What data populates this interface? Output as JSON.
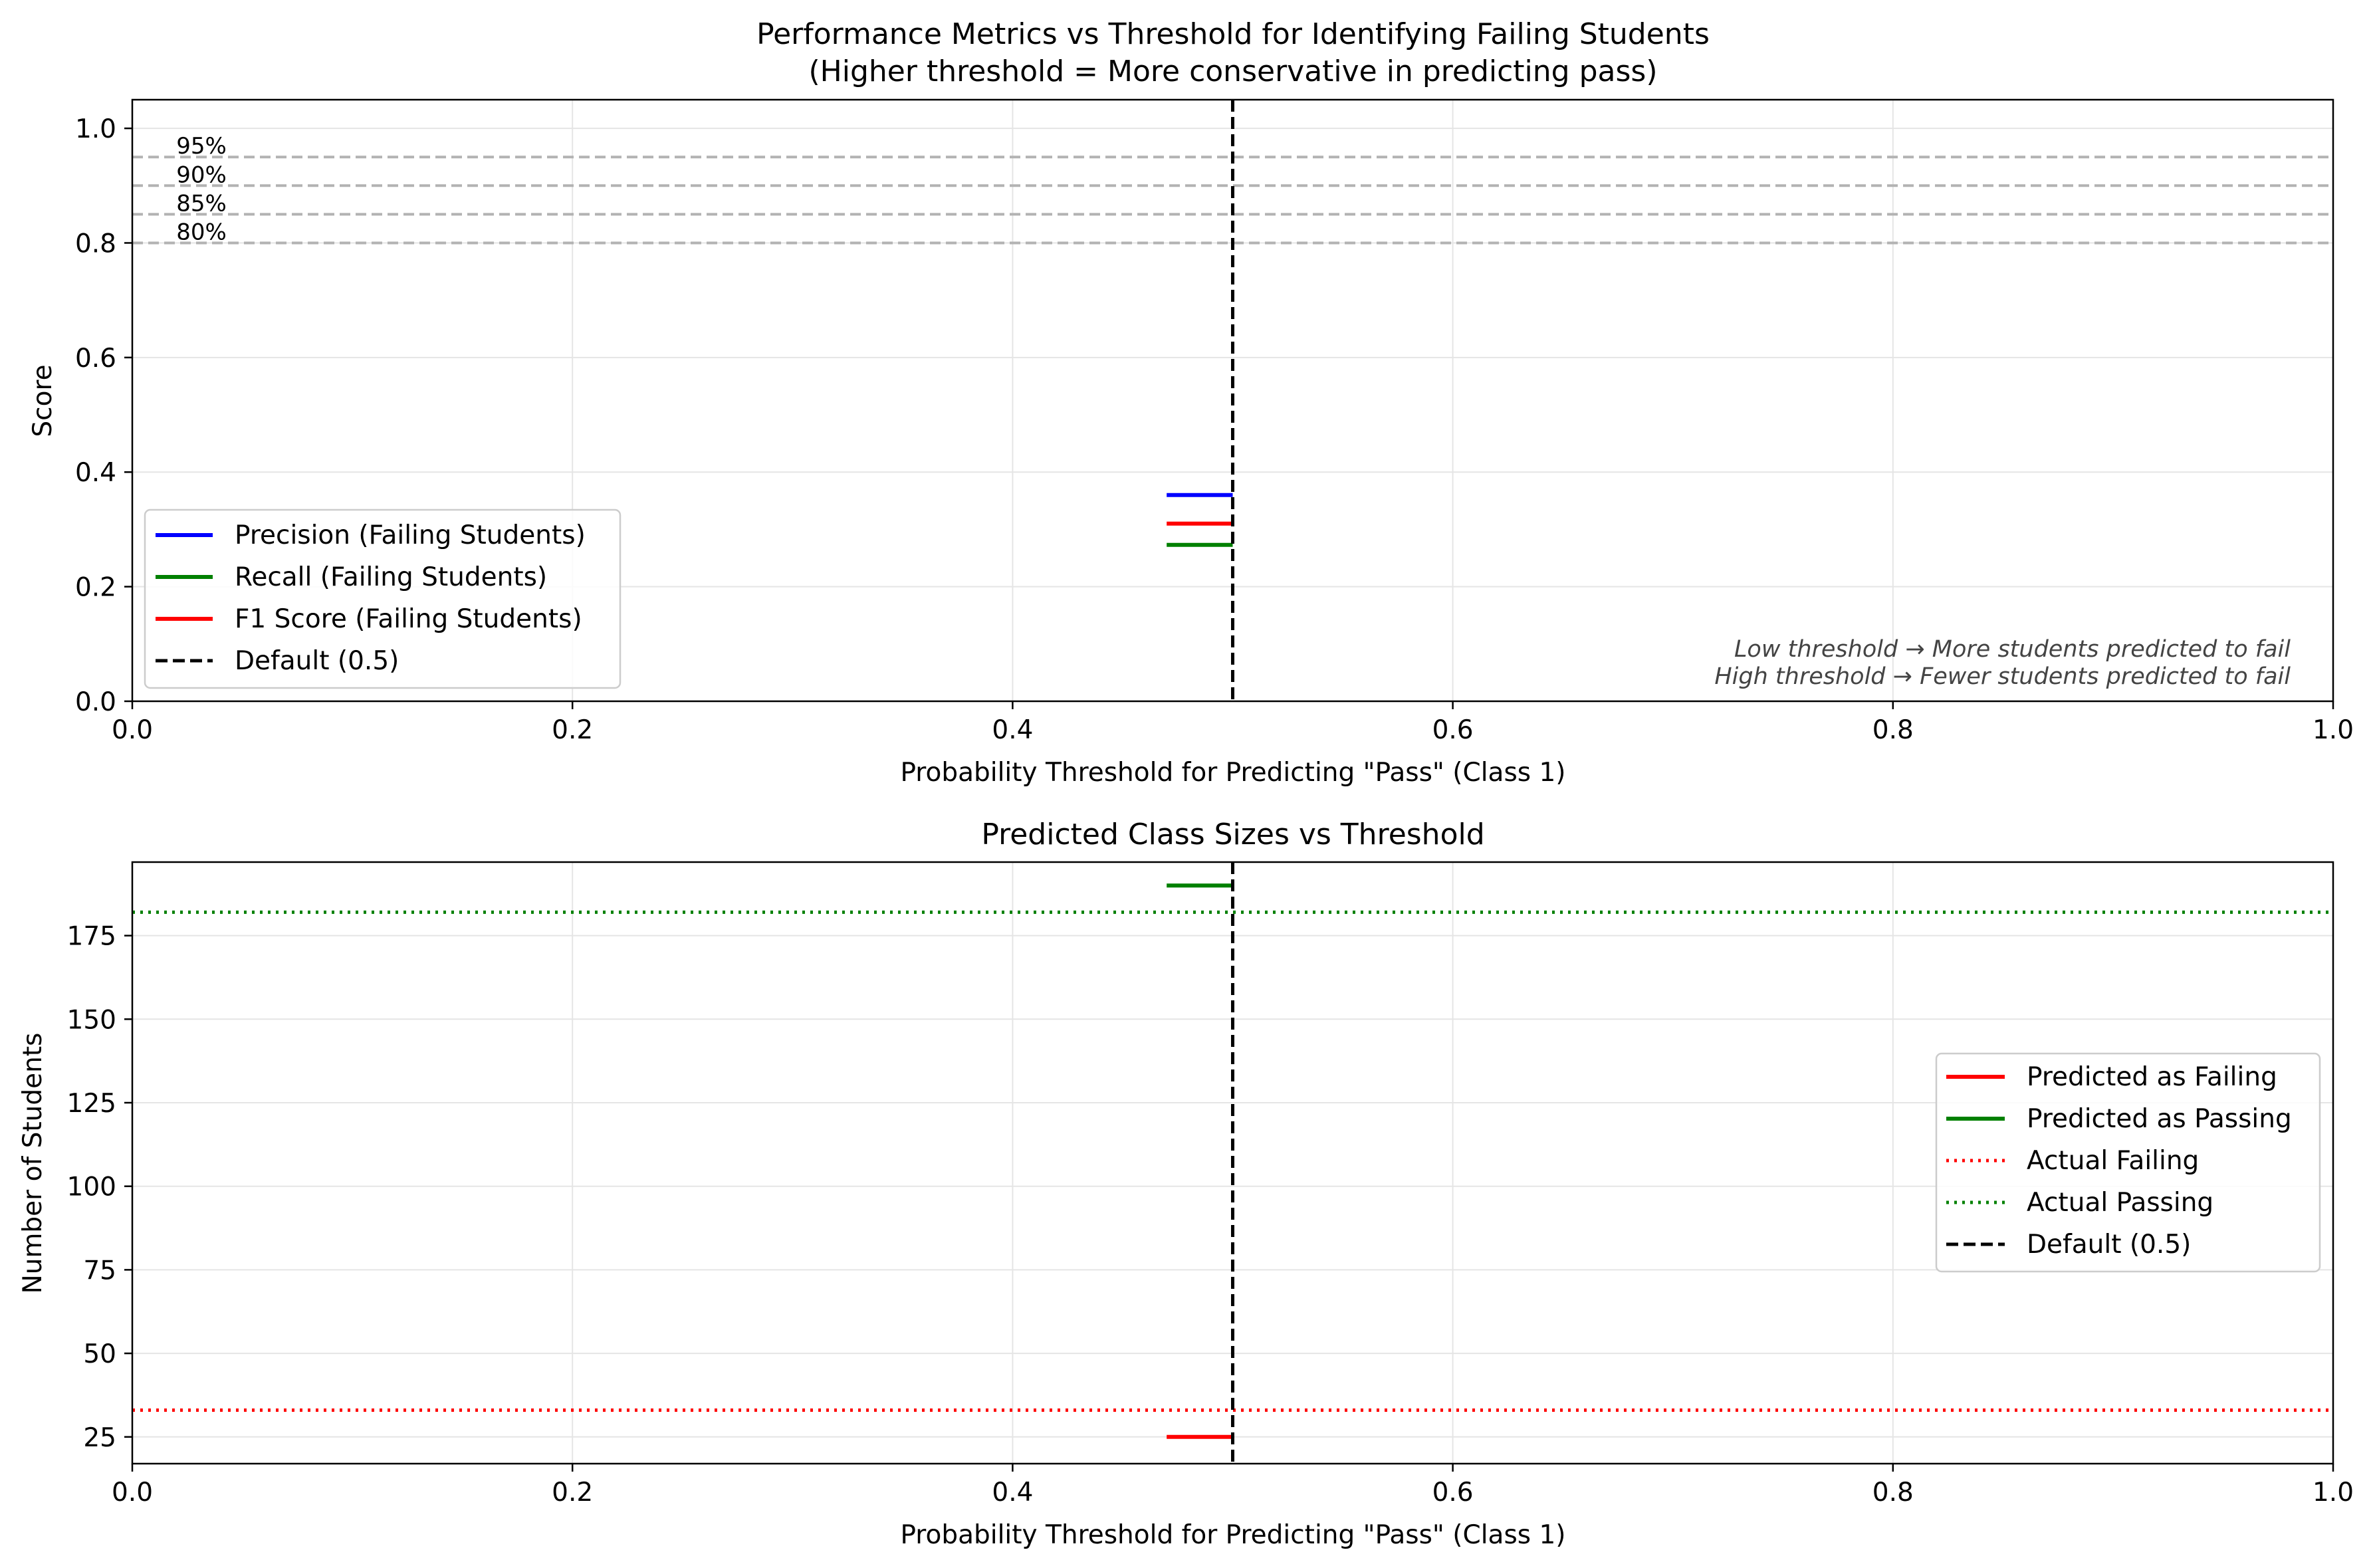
{
  "colors": {
    "blue": "#0000ff",
    "green": "#008000",
    "red": "#ff0000",
    "black": "#000000",
    "ref_gray": "#b3b3b3",
    "grid": "#e5e5e5",
    "note": "#444444"
  },
  "chart_data": [
    {
      "type": "line",
      "title": "Performance Metrics vs Threshold for Identifying Failing Students",
      "subtitle": "(Higher threshold = More conservative in predicting pass)",
      "xlabel": "Probability Threshold for Predicting \"Pass\" (Class 1)",
      "ylabel": "Score",
      "xlim": [
        0.0,
        1.0
      ],
      "ylim": [
        0.0,
        1.05
      ],
      "xticks": [
        "0.0",
        "0.2",
        "0.4",
        "0.6",
        "0.8",
        "1.0"
      ],
      "yticks": [
        "0.0",
        "0.2",
        "0.4",
        "0.6",
        "0.8",
        "1.0"
      ],
      "grid": true,
      "legend_position": "lower-left",
      "series": [
        {
          "name": "Precision (Failing Students)",
          "color": "blue",
          "style": "solid",
          "x": [
            0.47,
            0.5
          ],
          "y": [
            0.36,
            0.36
          ]
        },
        {
          "name": "Recall (Failing Students)",
          "color": "green",
          "style": "solid",
          "x": [
            0.47,
            0.5
          ],
          "y": [
            0.273,
            0.273
          ]
        },
        {
          "name": "F1 Score (Failing Students)",
          "color": "red",
          "style": "solid",
          "x": [
            0.47,
            0.5
          ],
          "y": [
            0.31,
            0.31
          ]
        }
      ],
      "vline": {
        "name": "Default (0.5)",
        "x": 0.5,
        "color": "black",
        "style": "dashed"
      },
      "reference_lines": [
        {
          "label": "95%",
          "y": 0.95
        },
        {
          "label": "90%",
          "y": 0.9
        },
        {
          "label": "85%",
          "y": 0.85
        },
        {
          "label": "80%",
          "y": 0.8
        }
      ],
      "annotations": [
        "Low threshold → More students predicted to fail",
        "High threshold → Fewer students predicted to fail"
      ]
    },
    {
      "type": "line",
      "title": "Predicted Class Sizes vs Threshold",
      "xlabel": "Probability Threshold for Predicting \"Pass\" (Class 1)",
      "ylabel": "Number of Students",
      "xlim": [
        0.0,
        1.0
      ],
      "ylim": [
        17,
        197
      ],
      "xticks": [
        "0.0",
        "0.2",
        "0.4",
        "0.6",
        "0.8",
        "1.0"
      ],
      "yticks": [
        "25",
        "50",
        "75",
        "100",
        "125",
        "150",
        "175"
      ],
      "grid": true,
      "legend_position": "center-right",
      "series": [
        {
          "name": "Predicted as Failing",
          "color": "red",
          "style": "solid",
          "x": [
            0.47,
            0.5
          ],
          "y": [
            25,
            25
          ]
        },
        {
          "name": "Predicted as Passing",
          "color": "green",
          "style": "solid",
          "x": [
            0.47,
            0.5
          ],
          "y": [
            190,
            190
          ]
        },
        {
          "name": "Actual Failing",
          "color": "red",
          "style": "dotted",
          "x": [
            0.0,
            1.0
          ],
          "y": [
            33,
            33
          ]
        },
        {
          "name": "Actual Passing",
          "color": "green",
          "style": "dotted",
          "x": [
            0.0,
            1.0
          ],
          "y": [
            182,
            182
          ]
        }
      ],
      "vline": {
        "name": "Default (0.5)",
        "x": 0.5,
        "color": "black",
        "style": "dashed"
      }
    }
  ]
}
